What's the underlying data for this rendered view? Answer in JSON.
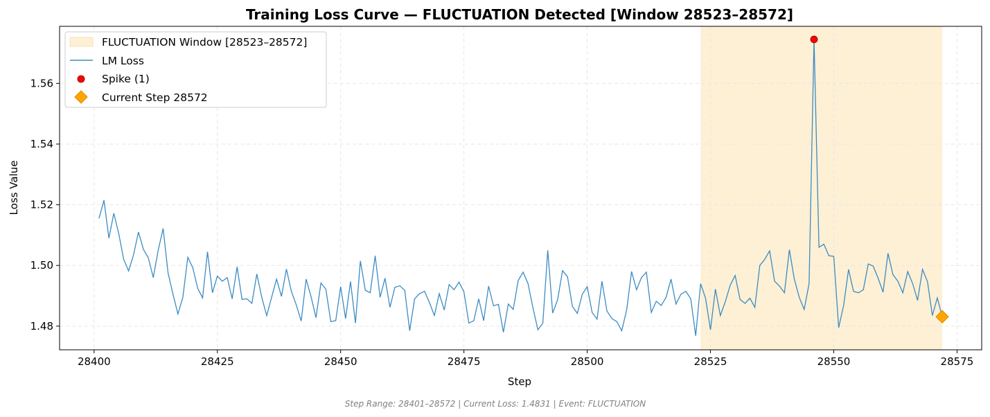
{
  "chart_data": {
    "type": "line",
    "title": "Training Loss Curve — FLUCTUATION Detected [Window 28523–28572]",
    "xlabel": "Step",
    "ylabel": "Loss Value",
    "xlim": [
      28393,
      28580
    ],
    "ylim": [
      1.4722,
      1.5788
    ],
    "xticks": [
      28400,
      28425,
      28450,
      28475,
      28500,
      28525,
      28550,
      28575
    ],
    "yticks": [
      1.48,
      1.5,
      1.52,
      1.54,
      1.56
    ],
    "ytick_labels": [
      "1.48",
      "1.50",
      "1.52",
      "1.54",
      "1.56"
    ],
    "grid": true,
    "legend_position": "upper-left",
    "window": {
      "label": "FLUCTUATION Window [28523–28572]",
      "start": 28523,
      "end": 28572,
      "color": "#fdf0d5"
    },
    "series": [
      {
        "name": "LM Loss",
        "color": "#3b8bc2",
        "x_start": 28401,
        "x_step": 1,
        "values": [
          1.5155,
          1.5215,
          1.509,
          1.5172,
          1.5105,
          1.502,
          1.4982,
          1.5035,
          1.511,
          1.5053,
          1.5025,
          1.496,
          1.505,
          1.5122,
          1.4975,
          1.4905,
          1.484,
          1.4895,
          1.5027,
          1.4993,
          1.4925,
          1.4893,
          1.5045,
          1.491,
          1.4965,
          1.4948,
          1.496,
          1.489,
          1.4995,
          1.4888,
          1.489,
          1.4875,
          1.4972,
          1.4895,
          1.4835,
          1.4895,
          1.4955,
          1.4898,
          1.4988,
          1.4915,
          1.487,
          1.4817,
          1.4955,
          1.4897,
          1.4828,
          1.4942,
          1.4922,
          1.4815,
          1.4818,
          1.493,
          1.4825,
          1.4947,
          1.481,
          1.5015,
          1.4918,
          1.491,
          1.5032,
          1.4895,
          1.4958,
          1.4862,
          1.4928,
          1.4933,
          1.4918,
          1.4785,
          1.489,
          1.4907,
          1.4915,
          1.4878,
          1.4835,
          1.4907,
          1.4853,
          1.4937,
          1.492,
          1.4945,
          1.4913,
          1.481,
          1.4818,
          1.489,
          1.4818,
          1.4932,
          1.4867,
          1.4872,
          1.478,
          1.4873,
          1.4855,
          1.495,
          1.4978,
          1.494,
          1.486,
          1.4788,
          1.481,
          1.505,
          1.4843,
          1.4887,
          1.4983,
          1.4963,
          1.4865,
          1.4842,
          1.4905,
          1.493,
          1.4845,
          1.4823,
          1.4948,
          1.485,
          1.4825,
          1.4815,
          1.4785,
          1.4853,
          1.498,
          1.492,
          1.496,
          1.4978,
          1.4845,
          1.4882,
          1.4868,
          1.4895,
          1.4955,
          1.4873,
          1.4905,
          1.4915,
          1.489,
          1.4768,
          1.494,
          1.4892,
          1.4788,
          1.4922,
          1.4835,
          1.488,
          1.4935,
          1.4967,
          1.4888,
          1.4875,
          1.4892,
          1.4862,
          1.5,
          1.502,
          1.5048,
          1.4948,
          1.4932,
          1.491,
          1.5052,
          1.4955,
          1.4895,
          1.4855,
          1.494,
          1.5745,
          1.506,
          1.507,
          1.5032,
          1.503,
          1.4795,
          1.4868,
          1.4987,
          1.4915,
          1.491,
          1.492,
          1.5005,
          1.4998,
          1.4958,
          1.4912,
          1.504,
          1.497,
          1.4948,
          1.491,
          1.498,
          1.494,
          1.4885,
          1.4987,
          1.4947,
          1.4835,
          1.4893,
          1.4831
        ]
      }
    ],
    "spike": {
      "label": "Spike (1)",
      "x": 28546,
      "y": 1.5745,
      "color": "#ff0000"
    },
    "current": {
      "label": "Current Step 28572",
      "x": 28572,
      "y": 1.4831,
      "color": "#ffa500"
    },
    "footer": "Step Range: 28401–28572 | Current Loss: 1.4831 | Event: FLUCTUATION"
  }
}
